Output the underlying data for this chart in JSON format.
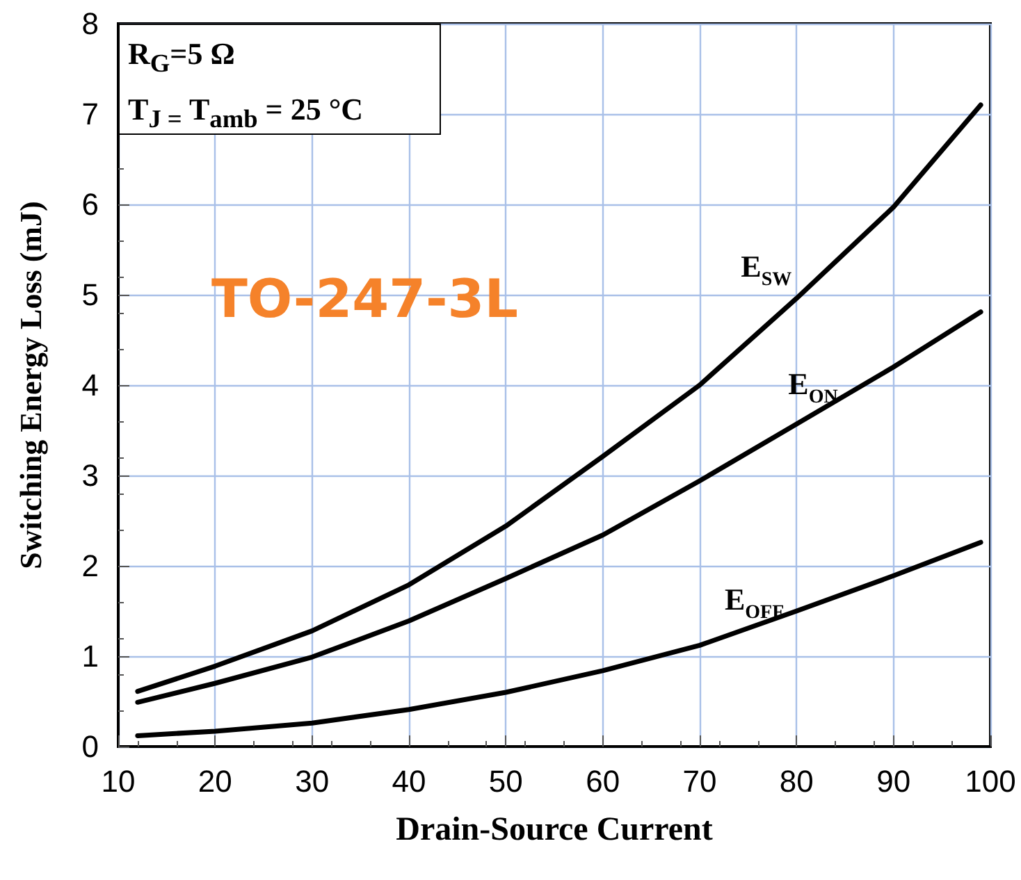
{
  "chart_data": {
    "type": "line",
    "xlabel": "Drain-Source Current",
    "ylabel": "Switching Energy Loss (mJ)",
    "annotations": [
      "R$_{G}$=5 Ω",
      "T$_{J =}$ T$_{amb}$ = 25 °C",
      "TO-247-3L"
    ],
    "x": [
      12,
      20,
      30,
      40,
      50,
      60,
      70,
      80,
      90,
      99
    ],
    "series": [
      {
        "name": "E$_{SW}$",
        "color": "#000000",
        "values": [
          0.61,
          0.89,
          1.28,
          1.79,
          2.44,
          3.21,
          4.0,
          4.96,
          5.97,
          7.1
        ]
      },
      {
        "name": "E$_{ON}$",
        "color": "#000000",
        "values": [
          0.49,
          0.7,
          0.99,
          1.39,
          1.86,
          2.34,
          2.94,
          3.57,
          4.2,
          4.81
        ]
      },
      {
        "name": "E$_{OFF}$",
        "color": "#000000",
        "values": [
          0.12,
          0.17,
          0.26,
          0.41,
          0.6,
          0.84,
          1.12,
          1.5,
          1.89,
          2.26
        ]
      }
    ],
    "xlim": [
      10,
      100
    ],
    "xticks": [
      10,
      20,
      30,
      40,
      50,
      60,
      70,
      80,
      90,
      100
    ],
    "ylim": [
      0,
      8
    ],
    "yticks": [
      0,
      1,
      2,
      3,
      4,
      5,
      6,
      7,
      8
    ],
    "grid": true,
    "marker": "none",
    "line_style": "solid"
  }
}
